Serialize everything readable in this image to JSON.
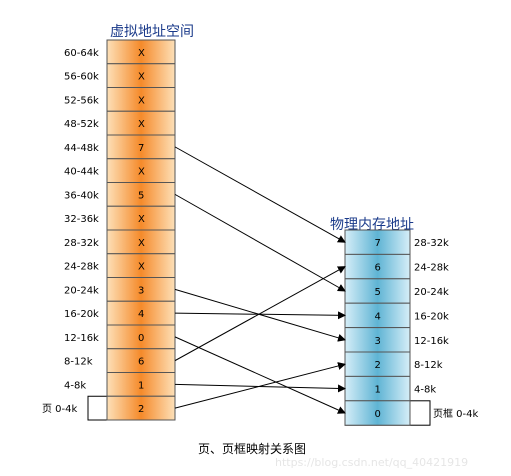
{
  "virtual_title": "虚拟地址空间",
  "physical_title": "物理内存地址",
  "caption": "页、页框映射关系图",
  "watermark": "https://blog.csdn.net/qq_40421919",
  "virtual_pages": [
    {
      "range": "60-64k",
      "value": "X"
    },
    {
      "range": "56-60k",
      "value": "X"
    },
    {
      "range": "52-56k",
      "value": "X"
    },
    {
      "range": "48-52k",
      "value": "X"
    },
    {
      "range": "44-48k",
      "value": "7"
    },
    {
      "range": "40-44k",
      "value": "X"
    },
    {
      "range": "36-40k",
      "value": "5"
    },
    {
      "range": "32-36k",
      "value": "X"
    },
    {
      "range": "28-32k",
      "value": "X"
    },
    {
      "range": "24-28k",
      "value": "X"
    },
    {
      "range": "20-24k",
      "value": "3"
    },
    {
      "range": "16-20k",
      "value": "4"
    },
    {
      "range": "12-16k",
      "value": "0"
    },
    {
      "range": "8-12k",
      "value": "6"
    },
    {
      "range": "4-8k",
      "value": "1"
    },
    {
      "range": "0-4k",
      "value": "2"
    }
  ],
  "virtual_bottom_prefix": "页",
  "physical_frames": [
    {
      "range": "28-32k",
      "value": "7"
    },
    {
      "range": "24-28k",
      "value": "6"
    },
    {
      "range": "20-24k",
      "value": "5"
    },
    {
      "range": "16-20k",
      "value": "4"
    },
    {
      "range": "12-16k",
      "value": "3"
    },
    {
      "range": "8-12k",
      "value": "2"
    },
    {
      "range": "4-8k",
      "value": "1"
    },
    {
      "range": "0-4k",
      "value": "0"
    }
  ],
  "physical_bottom_prefix": "页框",
  "colors": {
    "virtual_fill_top": "#fde0b8",
    "virtual_fill_mid": "#f58a2a",
    "physical_fill_top": "#d6eef8",
    "physical_fill_mid": "#5fb4d4",
    "title": "#1a3a8a"
  }
}
